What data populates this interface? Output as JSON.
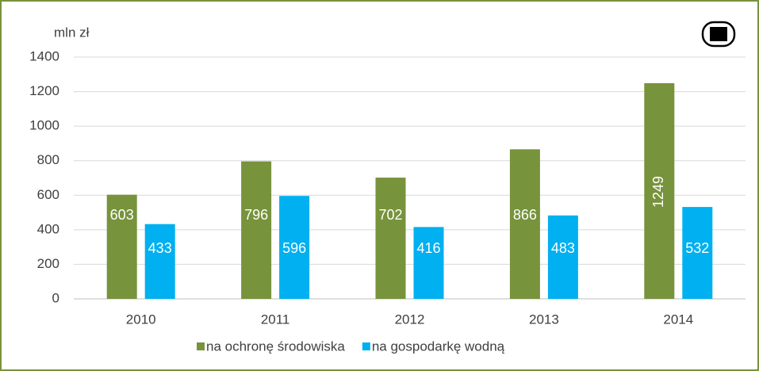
{
  "chart_data": {
    "type": "bar",
    "y_unit": "mln zł",
    "categories": [
      "2010",
      "2011",
      "2012",
      "2013",
      "2014"
    ],
    "series": [
      {
        "name": "na ochronę środowiska",
        "color": "#77933c",
        "values": [
          603,
          796,
          702,
          866,
          1249
        ]
      },
      {
        "name": "na gospodarkę wodną",
        "color": "#00b0f0",
        "values": [
          433,
          596,
          416,
          483,
          532
        ]
      }
    ],
    "ylim": [
      0,
      1400
    ],
    "yticks": [
      0,
      200,
      400,
      600,
      800,
      1000,
      1200,
      1400
    ],
    "grid": true,
    "legend": "bottom"
  }
}
